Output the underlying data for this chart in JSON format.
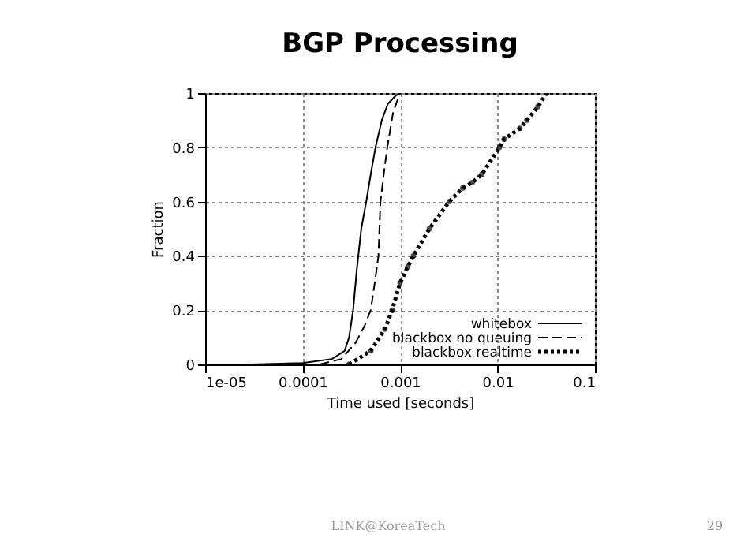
{
  "chart_data": {
    "type": "line",
    "title": "BGP Processing",
    "xlabel": "Time used [seconds]",
    "ylabel": "Fraction",
    "log": "x",
    "xlim": [
      1e-05,
      0.1
    ],
    "xticks": [
      {
        "value": 1e-05,
        "label": "1e-05"
      },
      0.0001,
      0.001,
      0.01,
      0.1
    ],
    "ylim": [
      0,
      1
    ],
    "yticks": [
      0,
      0.2,
      0.4,
      0.6,
      0.8,
      1
    ],
    "grid": true,
    "legend": "bottom right",
    "series": [
      {
        "name": "whitebox",
        "color": "#000000",
        "line_style": "solid",
        "marker": "none",
        "x": [
          3e-05,
          0.0001,
          0.0002,
          0.00027,
          0.0003,
          0.00033,
          0.00036,
          0.0004,
          0.00045,
          0.0005,
          0.00056,
          0.00065,
          0.00075,
          0.0009,
          0.001
        ],
        "values": [
          0,
          0.005,
          0.02,
          0.05,
          0.1,
          0.2,
          0.35,
          0.5,
          0.6,
          0.7,
          0.8,
          0.9,
          0.96,
          0.99,
          1
        ]
      },
      {
        "name": "blackbox no queuing",
        "color": "#000000",
        "line_style": "dashed",
        "marker": "none",
        "x": [
          0.00015,
          0.00025,
          0.00035,
          0.00043,
          0.0005,
          0.00055,
          0.0006,
          0.00063,
          0.00068,
          0.00074,
          0.00085,
          0.001
        ],
        "values": [
          0,
          0.02,
          0.08,
          0.14,
          0.2,
          0.3,
          0.4,
          0.6,
          0.7,
          0.8,
          0.93,
          1
        ]
      },
      {
        "name": "blackbox realtime",
        "color": "#000000",
        "line_style": "dotted",
        "marker": "circle",
        "x": [
          0.0003,
          0.0005,
          0.0007,
          0.00083,
          0.001,
          0.0012,
          0.00137,
          0.002,
          0.0032,
          0.0044,
          0.0055,
          0.0069,
          0.0105,
          0.0117,
          0.017,
          0.02,
          0.026,
          0.032
        ],
        "values": [
          0,
          0.05,
          0.13,
          0.2,
          0.3,
          0.36,
          0.4,
          0.5,
          0.6,
          0.65,
          0.67,
          0.7,
          0.8,
          0.83,
          0.87,
          0.9,
          0.95,
          1
        ]
      }
    ],
    "annotations": [
      "LINK@KoreaTech",
      "29"
    ]
  }
}
